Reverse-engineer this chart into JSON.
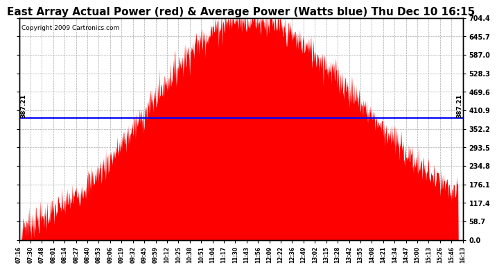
{
  "title": "East Array Actual Power (red) & Average Power (Watts blue) Thu Dec 10 16:15",
  "copyright": "Copyright 2009 Cartronics.com",
  "avg_power": 387.21,
  "ymax": 704.4,
  "yticks": [
    0.0,
    58.7,
    117.4,
    176.1,
    234.8,
    293.5,
    352.2,
    410.9,
    469.6,
    528.3,
    587.0,
    645.7,
    704.4
  ],
  "xtick_labels": [
    "07:16",
    "07:30",
    "07:48",
    "08:01",
    "08:14",
    "08:27",
    "08:40",
    "08:53",
    "09:06",
    "09:19",
    "09:32",
    "09:45",
    "09:59",
    "10:12",
    "10:25",
    "10:38",
    "10:51",
    "11:04",
    "11:17",
    "11:30",
    "11:43",
    "11:56",
    "12:09",
    "12:22",
    "12:36",
    "12:49",
    "13:02",
    "13:15",
    "13:28",
    "13:42",
    "13:55",
    "14:08",
    "14:21",
    "14:34",
    "14:47",
    "15:00",
    "15:13",
    "15:26",
    "15:46",
    "16:13"
  ],
  "bg_color": "#ffffff",
  "fill_color": "#ff0000",
  "line_color": "#0000ff",
  "grid_color": "#aaaaaa",
  "title_fontsize": 11,
  "copyright_fontsize": 6.5,
  "peak_hour": 11.8,
  "peak_value": 704.4,
  "sigma_rise": 1.9,
  "sigma_fall": 2.4,
  "noise_std": 25,
  "noise_seed": 7
}
